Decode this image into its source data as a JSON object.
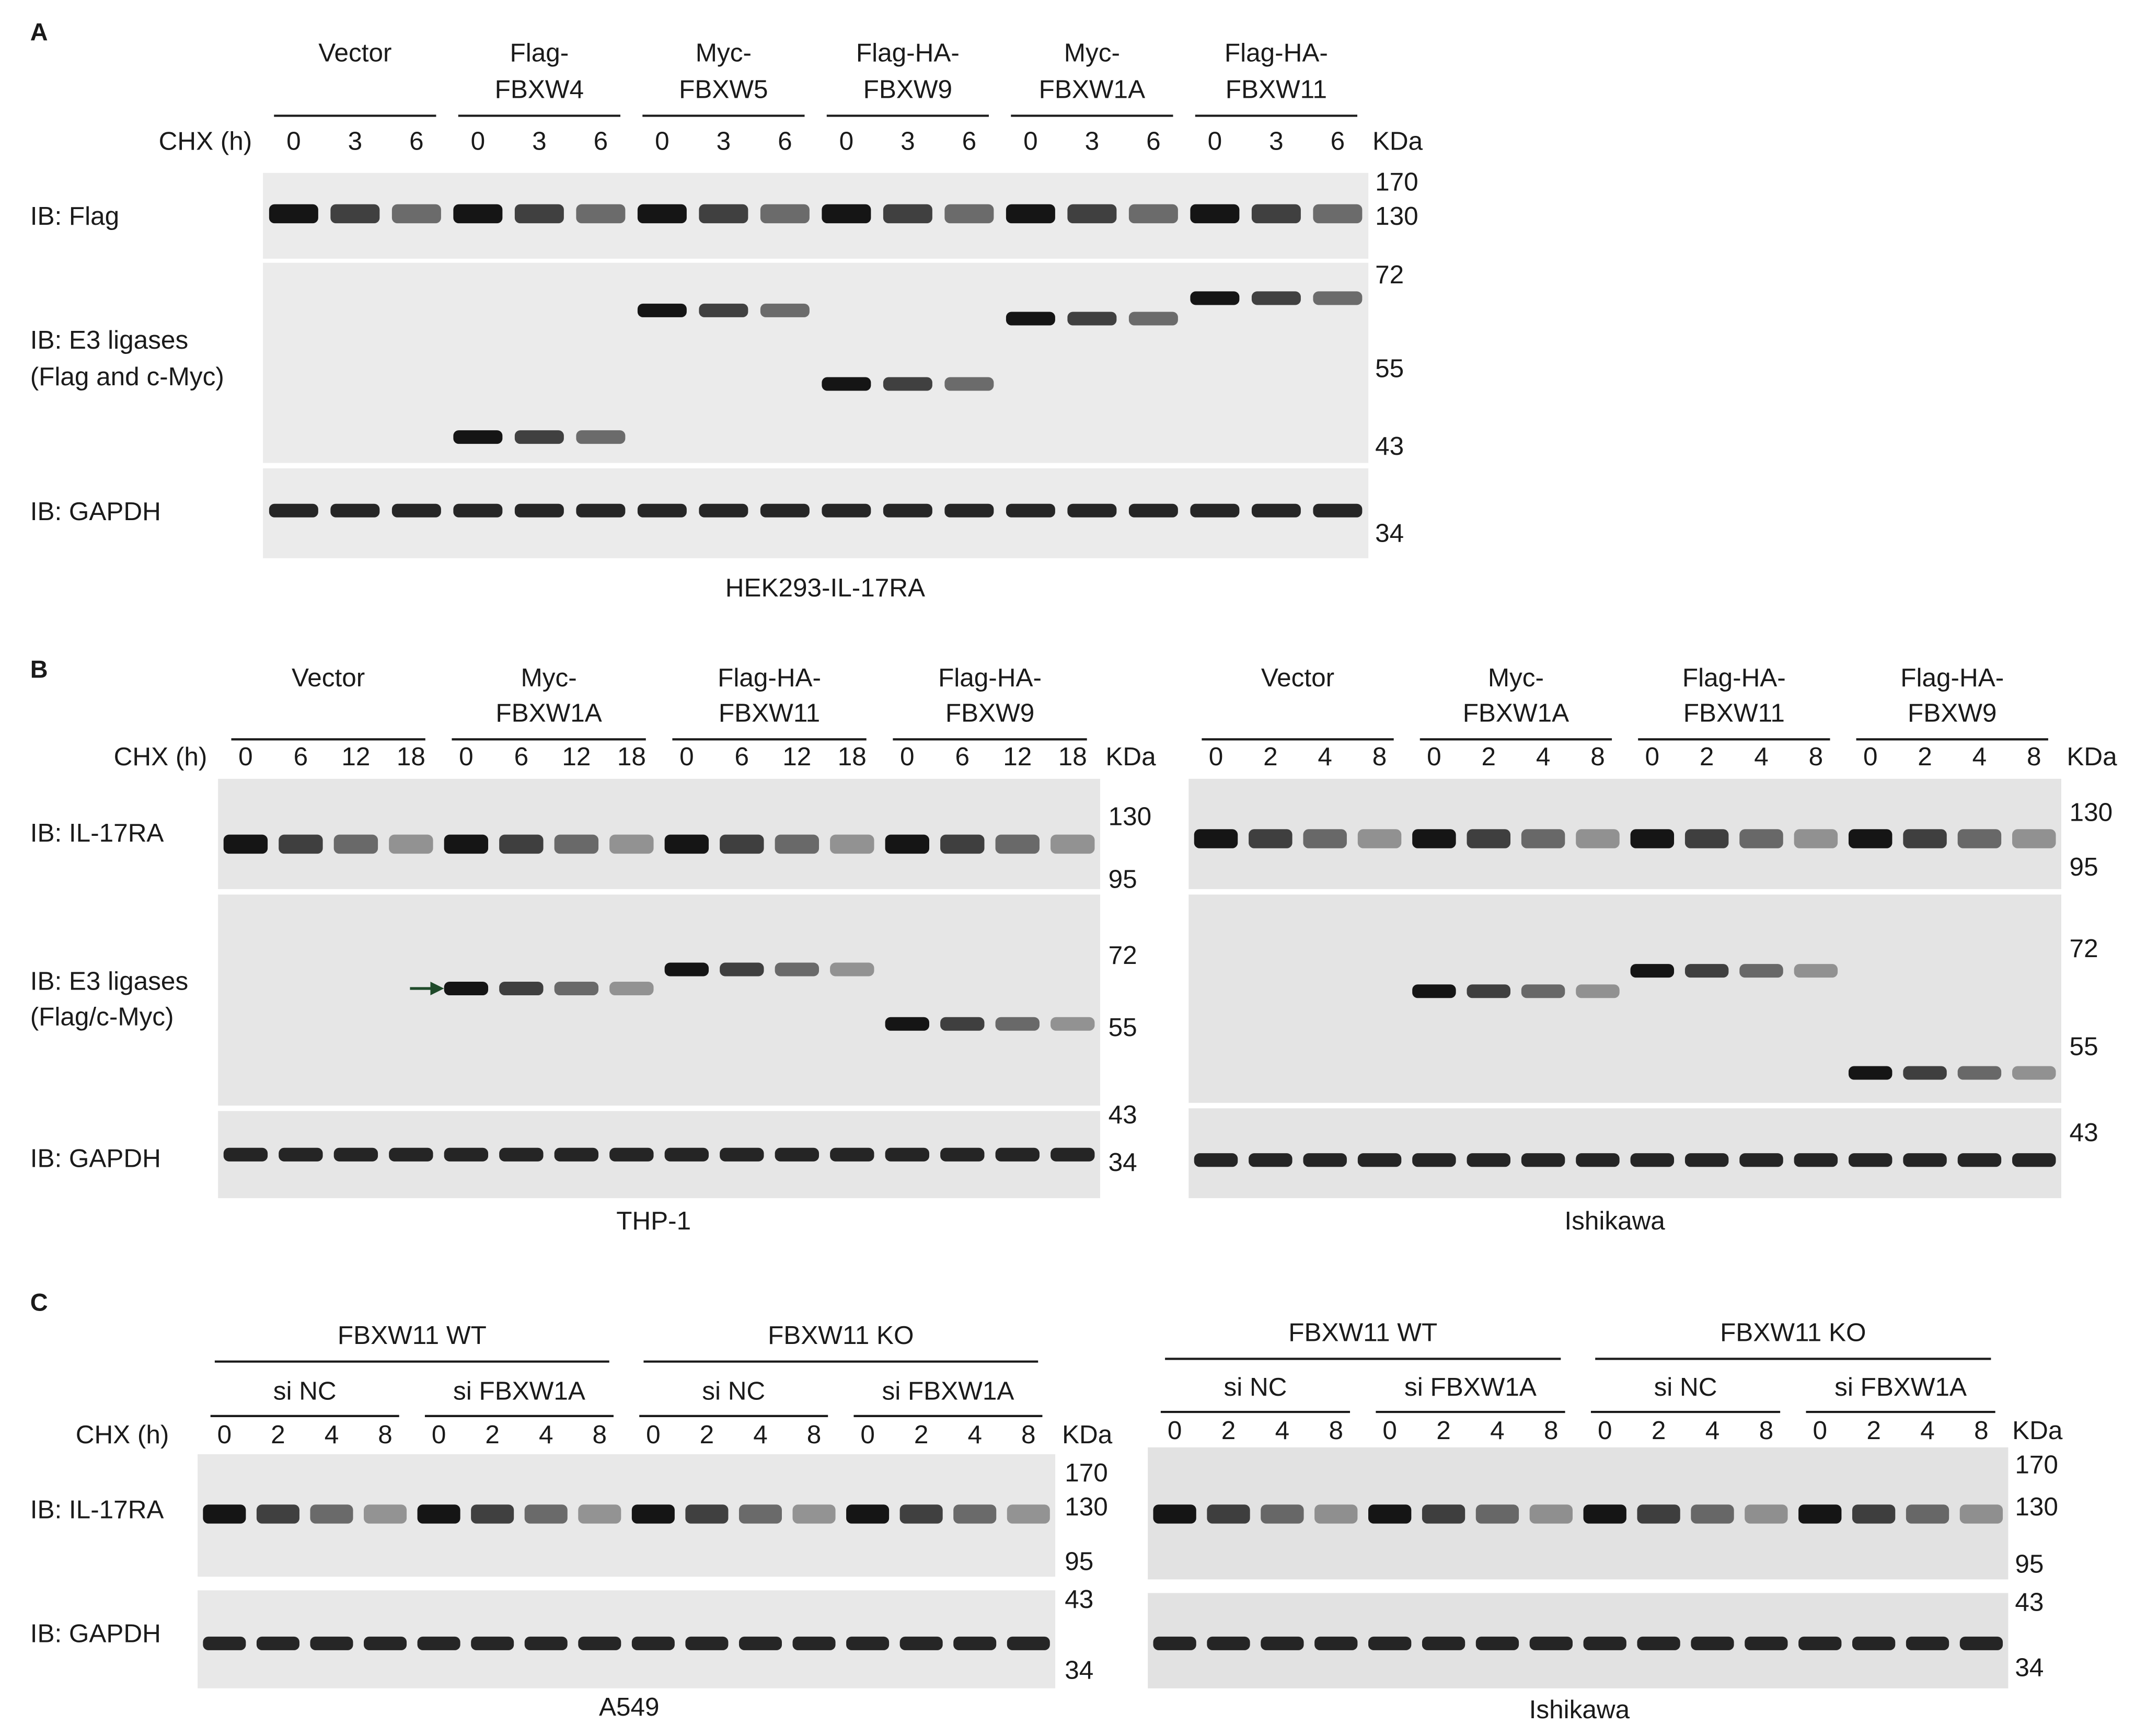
{
  "panels": [
    {
      "label": "A",
      "chx_label": "CHX (h)",
      "kda_label": "KDa",
      "rows": [
        [
          "IB: Flag"
        ],
        [
          "IB: E3 ligases",
          "(Flag and c-Myc)"
        ],
        [
          "IB: GAPDH"
        ]
      ],
      "blots": [
        {
          "groups": [
            [
              "Vector"
            ],
            [
              "Flag-",
              "FBXW4"
            ],
            [
              "Myc-",
              "FBXW5"
            ],
            [
              "Flag-HA-",
              "FBXW9"
            ],
            [
              "Myc-",
              "FBXW1A"
            ],
            [
              "Flag-HA-",
              "FBXW11"
            ]
          ],
          "times": [
            0,
            3,
            6
          ],
          "markers": [
            170,
            130,
            72,
            55,
            43,
            34
          ],
          "cell_line": "HEK293-IL-17RA"
        }
      ]
    },
    {
      "label": "B",
      "chx_label": "CHX (h)",
      "kda_label": "KDa",
      "rows": [
        [
          "IB: IL-17RA"
        ],
        [
          "IB: E3 ligases",
          "(Flag/c-Myc)"
        ],
        [
          "IB: GAPDH"
        ]
      ],
      "blots": [
        {
          "groups": [
            [
              "Vector"
            ],
            [
              "Myc-",
              "FBXW1A"
            ],
            [
              "Flag-HA-",
              "FBXW11"
            ],
            [
              "Flag-HA-",
              "FBXW9"
            ]
          ],
          "times": [
            0,
            6,
            12,
            18
          ],
          "markers": [
            130,
            95,
            72,
            55,
            43,
            34
          ],
          "cell_line": "THP-1"
        },
        {
          "groups": [
            [
              "Vector"
            ],
            [
              "Myc-",
              "FBXW1A"
            ],
            [
              "Flag-HA-",
              "FBXW11"
            ],
            [
              "Flag-HA-",
              "FBXW9"
            ]
          ],
          "times": [
            0,
            2,
            4,
            8
          ],
          "markers": [
            130,
            95,
            72,
            55,
            43
          ],
          "cell_line": "Ishikawa"
        }
      ]
    },
    {
      "label": "C",
      "chx_label": "CHX (h)",
      "kda_label": "KDa",
      "rows": [
        [
          "IB: IL-17RA"
        ],
        [
          "IB: GAPDH"
        ]
      ],
      "blots": [
        {
          "groups": [
            "FBXW11 WT",
            "FBXW11 KO"
          ],
          "subgroups": [
            "si NC",
            "si FBXW1A"
          ],
          "times": [
            0,
            2,
            4,
            8
          ],
          "markers": [
            170,
            130,
            95,
            43,
            34
          ],
          "cell_line": "A549"
        },
        {
          "groups": [
            "FBXW11 WT",
            "FBXW11 KO"
          ],
          "subgroups": [
            "si NC",
            "si FBXW1A"
          ],
          "times": [
            0,
            2,
            4,
            8
          ],
          "markers": [
            170,
            130,
            95,
            43,
            34
          ],
          "cell_line": "Ishikawa"
        }
      ]
    }
  ]
}
